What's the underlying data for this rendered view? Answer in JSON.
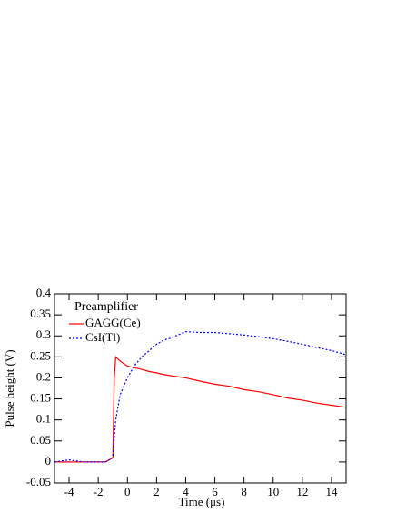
{
  "chart_data": {
    "type": "line",
    "x_label": "Time (μs)",
    "y_label": "Pulse height (V)",
    "legend_title": "Preamplifier",
    "legend": "upper left",
    "x": [
      -5,
      -4,
      -3,
      -2,
      -1.5,
      -1,
      -0.9,
      -0.8,
      -0.5,
      0,
      0.5,
      1,
      1.5,
      2,
      2.5,
      3,
      4,
      5,
      6,
      7,
      8,
      9,
      10,
      11,
      12,
      13,
      14,
      15
    ],
    "series": [
      {
        "name": "GAGG(Ce)",
        "color": "#ff0000",
        "linestyle": "solid",
        "values": [
          0,
          0,
          0,
          0,
          0,
          0.01,
          0.2,
          0.25,
          0.24,
          0.228,
          0.224,
          0.22,
          0.215,
          0.212,
          0.208,
          0.205,
          0.2,
          0.192,
          0.185,
          0.18,
          0.172,
          0.167,
          0.16,
          0.152,
          0.147,
          0.14,
          0.135,
          0.13
        ]
      },
      {
        "name": "CsI(Tl)",
        "color": "#0000ff",
        "linestyle": "dashed",
        "values": [
          0,
          0.005,
          0,
          0,
          0,
          0.01,
          0.06,
          0.1,
          0.16,
          0.2,
          0.23,
          0.25,
          0.265,
          0.28,
          0.29,
          0.295,
          0.31,
          0.308,
          0.308,
          0.305,
          0.302,
          0.298,
          0.293,
          0.287,
          0.28,
          0.272,
          0.265,
          0.255
        ]
      }
    ],
    "xlim": [
      -5,
      15
    ],
    "xticks": [
      -4,
      -2,
      0,
      2,
      4,
      6,
      8,
      10,
      12,
      14
    ],
    "ylim": [
      -0.05,
      0.4
    ],
    "yticks": [
      -0.05,
      0,
      0.05,
      0.1,
      0.15,
      0.2,
      0.25,
      0.3,
      0.35,
      0.4
    ]
  }
}
